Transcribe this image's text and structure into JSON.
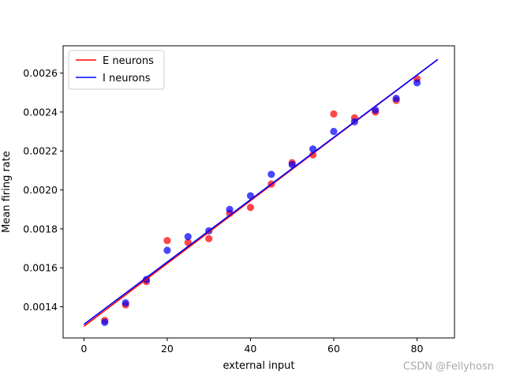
{
  "chart_data": {
    "type": "scatter",
    "title": "",
    "xlabel": "external input",
    "ylabel": "Mean firing rate",
    "xlim": [
      -5,
      89
    ],
    "ylim": [
      0.00124,
      0.00274
    ],
    "xticks": [
      0,
      20,
      40,
      60,
      80
    ],
    "yticks": [
      0.0014,
      0.0016,
      0.0018,
      0.002,
      0.0022,
      0.0024,
      0.0026
    ],
    "ytick_labels": [
      "0.0014",
      "0.0016",
      "0.0018",
      "0.0020",
      "0.0022",
      "0.0024",
      "0.0026"
    ],
    "legend_position": "top-left",
    "grid": false,
    "series": [
      {
        "name": "E neurons",
        "color": "#ff0000",
        "x": [
          5,
          10,
          15,
          20,
          25,
          30,
          35,
          40,
          45,
          50,
          55,
          60,
          65,
          70,
          75,
          80
        ],
        "y": [
          0.00133,
          0.00141,
          0.00153,
          0.00174,
          0.00173,
          0.00175,
          0.00188,
          0.00191,
          0.00203,
          0.00214,
          0.00218,
          0.00239,
          0.00237,
          0.0024,
          0.00246,
          0.00257
        ],
        "fit": {
          "x": [
            0,
            85
          ],
          "y": [
            0.0013,
            0.00267
          ]
        }
      },
      {
        "name": "I neurons",
        "color": "#0000ff",
        "x": [
          5,
          10,
          15,
          20,
          25,
          30,
          35,
          40,
          45,
          50,
          55,
          60,
          65,
          70,
          75,
          80
        ],
        "y": [
          0.00132,
          0.00142,
          0.00154,
          0.00169,
          0.00176,
          0.00179,
          0.0019,
          0.00197,
          0.00208,
          0.00213,
          0.00221,
          0.0023,
          0.00235,
          0.00241,
          0.00247,
          0.00255
        ],
        "fit": {
          "x": [
            0,
            85
          ],
          "y": [
            0.00131,
            0.00267
          ]
        }
      }
    ]
  },
  "watermark": "CSDN @Fellyhosn"
}
